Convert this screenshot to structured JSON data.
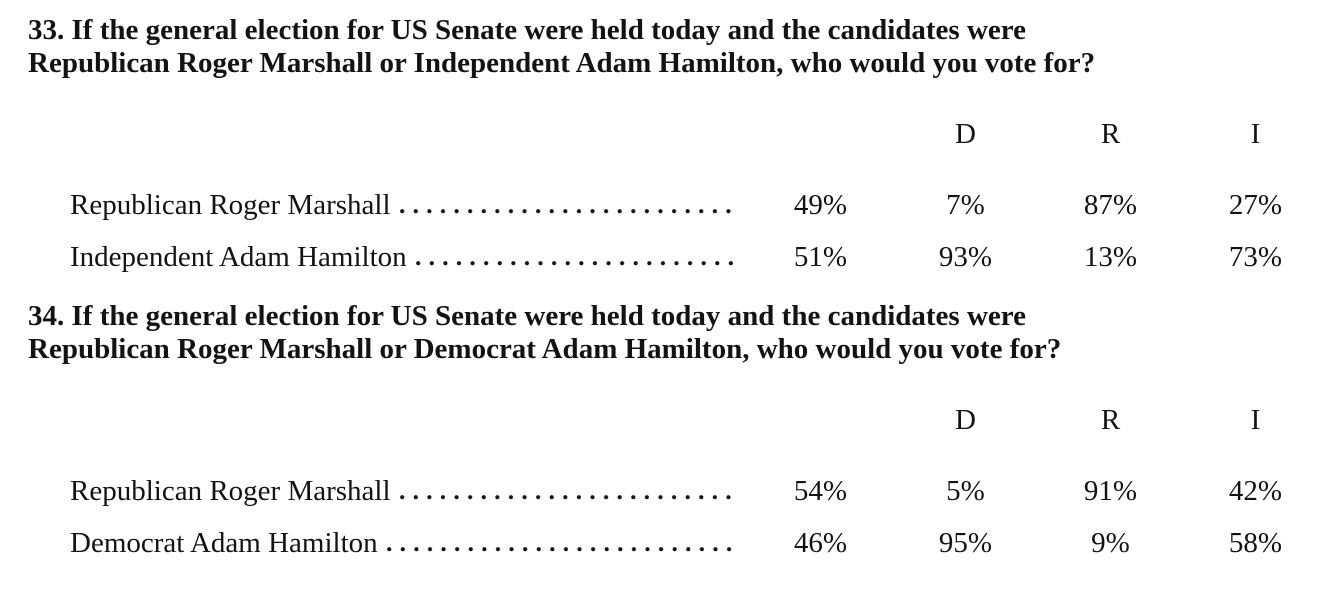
{
  "document": {
    "text_color": "#131313",
    "background_color": "#ffffff"
  },
  "questions": [
    {
      "heading_line1": "33. If the general election for US Senate were held today and the candidates were",
      "heading_line2": "Republican Roger Marshall or Independent Adam Hamilton, who would you vote for?",
      "columns": [
        "D",
        "R",
        "I"
      ],
      "rows": [
        {
          "label": "Republican Roger Marshall",
          "total": "49%",
          "D": "7%",
          "R": "87%",
          "I": "27%"
        },
        {
          "label": "Independent Adam Hamilton",
          "total": "51%",
          "D": "93%",
          "R": "13%",
          "I": "73%"
        }
      ]
    },
    {
      "heading_line1": "34. If the general election for US Senate were held today and the candidates were",
      "heading_line2": "Republican Roger Marshall or Democrat Adam Hamilton, who would you vote for?",
      "columns": [
        "D",
        "R",
        "I"
      ],
      "rows": [
        {
          "label": "Republican Roger Marshall",
          "total": "54%",
          "D": "5%",
          "R": "91%",
          "I": "42%"
        },
        {
          "label": "Democrat Adam Hamilton",
          "total": "46%",
          "D": "95%",
          "R": "9%",
          "I": "58%"
        }
      ]
    }
  ]
}
